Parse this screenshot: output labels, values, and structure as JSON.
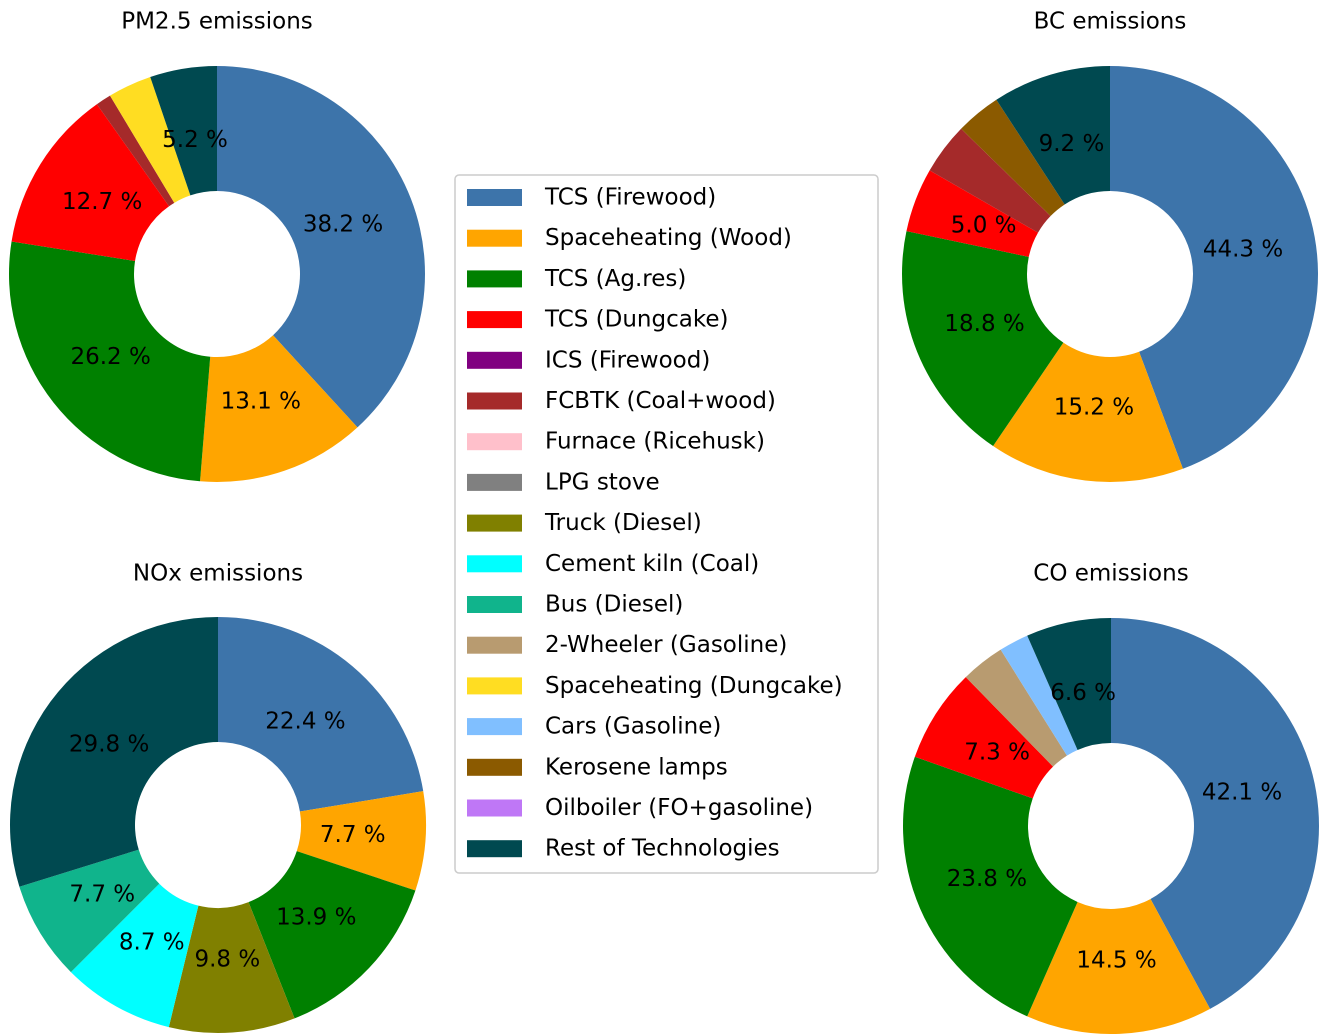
{
  "chart_data": [
    {
      "type": "pie",
      "title": "PM2.5 emissions",
      "categories": [
        "TCS (Firewood)",
        "Spaceheating (Wood)",
        "TCS (Ag.res)",
        "TCS (Dungcake)",
        "FCBTK (Coal+wood)",
        "Spaceheating (Dungcake)",
        "Rest of Technologies"
      ],
      "values": [
        38.2,
        13.1,
        26.2,
        12.7,
        1.2,
        3.4,
        5.2
      ],
      "value_labels": [
        "38.2 %",
        "13.1 %",
        "26.2 %",
        "12.7 %",
        null,
        null,
        "5.2 %"
      ]
    },
    {
      "type": "pie",
      "title": "BC emissions",
      "categories": [
        "TCS (Firewood)",
        "Spaceheating (Wood)",
        "TCS (Ag.res)",
        "TCS (Dungcake)",
        "FCBTK (Coal+wood)",
        "Kerosene lamps",
        "Rest of Technologies"
      ],
      "values": [
        44.3,
        15.2,
        18.8,
        5.0,
        4.0,
        3.5,
        9.2
      ],
      "value_labels": [
        "44.3 %",
        "15.2 %",
        "18.8 %",
        "5.0 %",
        null,
        null,
        "9.2 %"
      ]
    },
    {
      "type": "pie",
      "title": "NOx emissions",
      "categories": [
        "TCS (Firewood)",
        "Spaceheating (Wood)",
        "TCS (Ag.res)",
        "Truck (Diesel)",
        "Cement kiln (Coal)",
        "Bus (Diesel)",
        "Rest of Technologies"
      ],
      "values": [
        22.4,
        7.7,
        13.9,
        9.8,
        8.7,
        7.7,
        29.8
      ],
      "value_labels": [
        "22.4 %",
        "7.7 %",
        "13.9 %",
        "9.8 %",
        "8.7 %",
        "7.7 %",
        "29.8 %"
      ]
    },
    {
      "type": "pie",
      "title": "CO emissions",
      "categories": [
        "TCS (Firewood)",
        "Spaceheating (Wood)",
        "TCS (Ag.res)",
        "TCS (Dungcake)",
        "2-Wheeler (Gasoline)",
        "Cars (Gasoline)",
        "Rest of Technologies"
      ],
      "values": [
        42.1,
        14.5,
        23.8,
        7.3,
        3.4,
        2.3,
        6.6
      ],
      "value_labels": [
        "42.1 %",
        "14.5 %",
        "23.8 %",
        "7.3 %",
        null,
        null,
        "6.6 %"
      ]
    }
  ],
  "legend": {
    "items": [
      {
        "name": "TCS (Firewood)",
        "color": "#3d74aa"
      },
      {
        "name": "Spaceheating (Wood)",
        "color": "#ffa500"
      },
      {
        "name": "TCS (Ag.res)",
        "color": "#008000"
      },
      {
        "name": "TCS (Dungcake)",
        "color": "#ff0000"
      },
      {
        "name": "ICS (Firewood)",
        "color": "#800080"
      },
      {
        "name": "FCBTK (Coal+wood)",
        "color": "#a52a2a"
      },
      {
        "name": "Furnace (Ricehusk)",
        "color": "#ffc0cb"
      },
      {
        "name": "LPG stove",
        "color": "#808080"
      },
      {
        "name": "Truck (Diesel)",
        "color": "#808000"
      },
      {
        "name": "Cement kiln (Coal)",
        "color": "#00ffff"
      },
      {
        "name": "Bus (Diesel)",
        "color": "#10b48c"
      },
      {
        "name": "2-Wheeler (Gasoline)",
        "color": "#b89b70"
      },
      {
        "name": "Spaceheating (Dungcake)",
        "color": "#ffdd22"
      },
      {
        "name": "Cars (Gasoline)",
        "color": "#80bfff"
      },
      {
        "name": "Kerosene lamps",
        "color": "#8b5a00"
      },
      {
        "name": "Oilboiler (FO+gasoline)",
        "color": "#bf77f6"
      },
      {
        "name": "Rest of Technologies",
        "color": "#004950"
      }
    ]
  }
}
